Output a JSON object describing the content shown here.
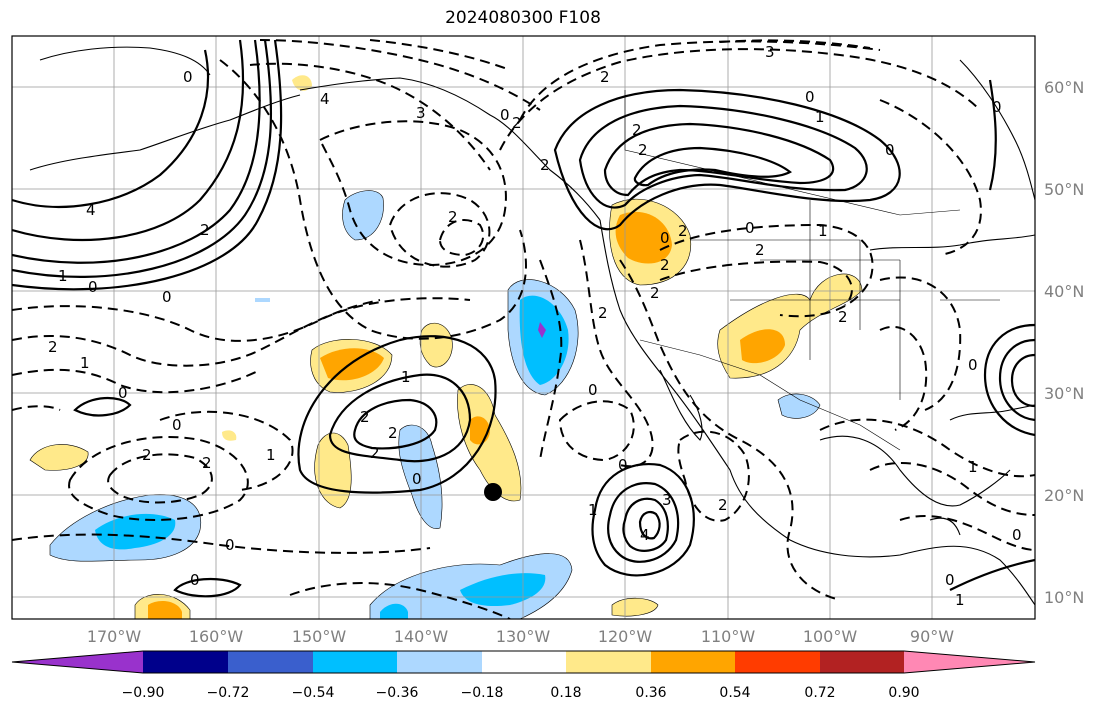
{
  "title": "2024080300 F108",
  "map": {
    "lat_ticks": [
      "60°N",
      "50°N",
      "40°N",
      "30°N",
      "20°N",
      "10°N"
    ],
    "lon_ticks": [
      "170°W",
      "160°W",
      "150°W",
      "140°W",
      "130°W",
      "120°W",
      "110°W",
      "100°W",
      "90°W"
    ],
    "gridlines": true,
    "marker": "black-dot",
    "contour_labels": [
      "0",
      "4",
      "1",
      "0",
      "0",
      "2",
      "1",
      "0",
      "0",
      "2",
      "2",
      "1",
      "2",
      "2",
      "0",
      "2",
      "2",
      "4",
      "3",
      "2",
      "2",
      "2",
      "0",
      "1",
      "2",
      "2",
      "0",
      "1",
      "0",
      "2",
      "1",
      "2",
      "0",
      "3",
      "4",
      "0",
      "1",
      "2",
      "0",
      "2",
      "3",
      "0",
      "1",
      "1",
      "0",
      "0",
      "0",
      "0",
      "2",
      "2",
      "0",
      "2",
      "0",
      "2"
    ]
  },
  "colorbar": {
    "labels": [
      "−0.90",
      "−0.72",
      "−0.54",
      "−0.36",
      "−0.18",
      "0.18",
      "0.36",
      "0.54",
      "0.72",
      "0.90"
    ],
    "colors": [
      "#9932cc",
      "#00008b",
      "#3a5fcd",
      "#00bfff",
      "#add8ff",
      "#ffffff",
      "#ffe98a",
      "#ffa500",
      "#ff3c00",
      "#b22222",
      "#ff88b4"
    ]
  }
}
